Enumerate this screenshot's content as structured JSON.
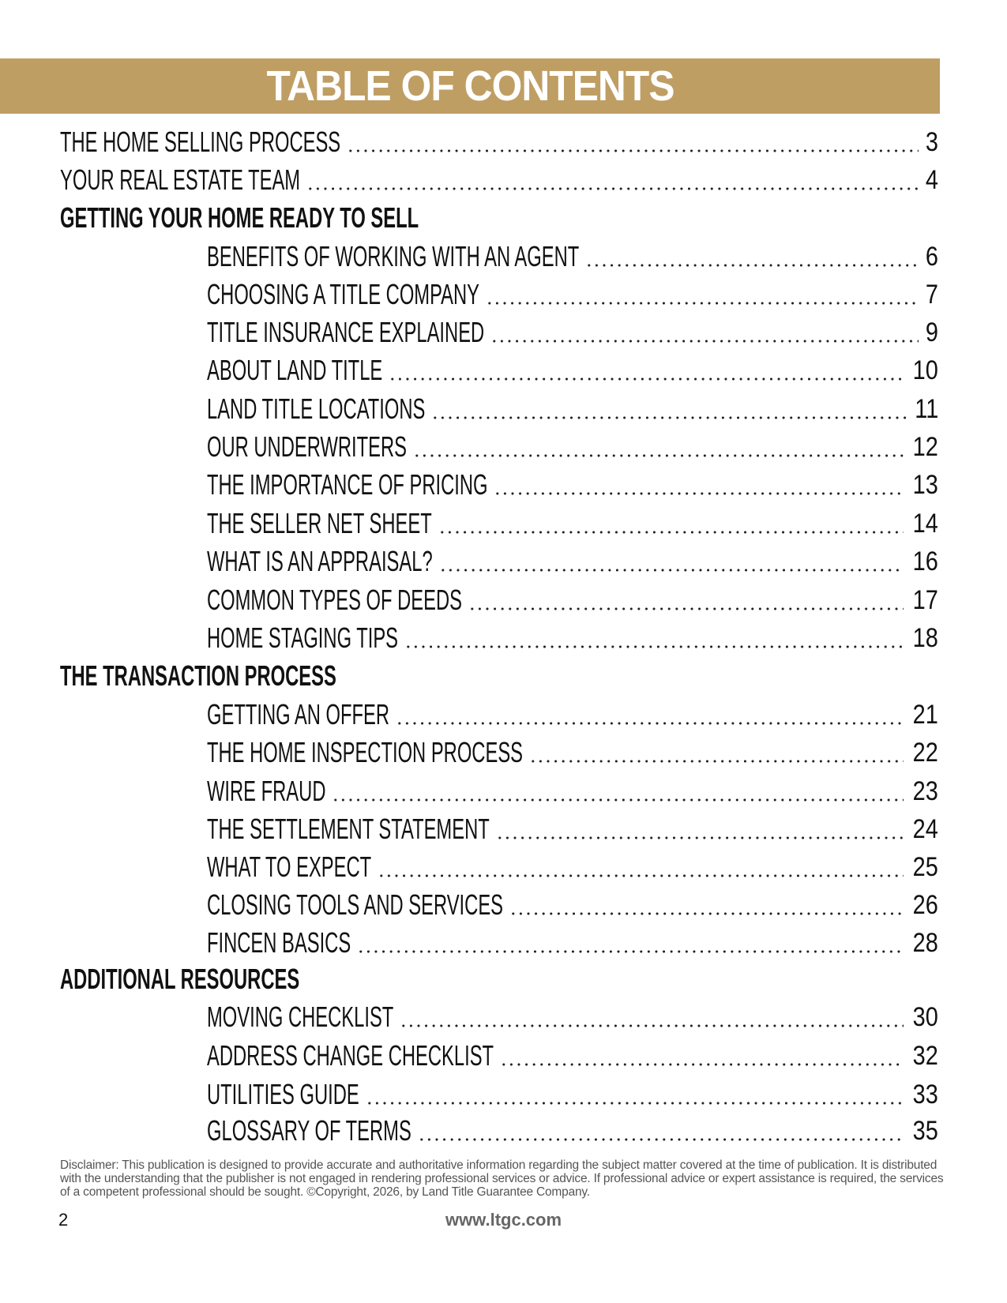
{
  "title": "TABLE OF CONTENTS",
  "colors": {
    "banner": "#bf9e64"
  },
  "entries": [
    {
      "label": "THE HOME SELLING PROCESS",
      "page": "3",
      "level": 0
    },
    {
      "label": "YOUR REAL ESTATE TEAM",
      "page": "4",
      "level": 0
    },
    {
      "label": "GETTING YOUR HOME READY TO SELL",
      "page": "",
      "level": "section"
    },
    {
      "label": "BENEFITS OF WORKING WITH AN AGENT",
      "page": "6",
      "level": 1
    },
    {
      "label": "CHOOSING A TITLE COMPANY",
      "page": "7",
      "level": 1
    },
    {
      "label": "TITLE INSURANCE EXPLAINED",
      "page": "9",
      "level": 1
    },
    {
      "label": "ABOUT LAND TITLE",
      "page": "10",
      "level": 1
    },
    {
      "label": "LAND TITLE LOCATIONS",
      "page": "11",
      "level": 1
    },
    {
      "label": "OUR UNDERWRITERS",
      "page": "12",
      "level": 1
    },
    {
      "label": "THE IMPORTANCE OF PRICING",
      "page": "13",
      "level": 1
    },
    {
      "label": "THE SELLER NET SHEET",
      "page": "14",
      "level": 1
    },
    {
      "label": "WHAT IS AN APPRAISAL?",
      "page": "16",
      "level": 1
    },
    {
      "label": "COMMON TYPES OF DEEDS",
      "page": "17",
      "level": 1
    },
    {
      "label": "HOME STAGING TIPS",
      "page": "18",
      "level": 1
    },
    {
      "label": "THE TRANSACTION PROCESS",
      "page": "",
      "level": "section"
    },
    {
      "label": "GETTING AN OFFER",
      "page": "21",
      "level": 1
    },
    {
      "label": "THE HOME INSPECTION PROCESS",
      "page": "22",
      "level": 1
    },
    {
      "label": "WIRE FRAUD",
      "page": "23",
      "level": 1
    },
    {
      "label": "THE SETTLEMENT STATEMENT",
      "page": "24",
      "level": 1
    },
    {
      "label": "WHAT TO EXPECT",
      "page": "25",
      "level": 1
    },
    {
      "label": "CLOSING TOOLS AND SERVICES",
      "page": "26",
      "level": 1
    },
    {
      "label": "FINCEN BASICS",
      "page": "28",
      "level": 1
    },
    {
      "label": "ADDITIONAL RESOURCES",
      "page": "",
      "level": "section"
    },
    {
      "label": "MOVING CHECKLIST",
      "page": "30",
      "level": 1
    },
    {
      "label": "ADDRESS CHANGE CHECKLIST",
      "page": "32",
      "level": 1
    },
    {
      "label": "UTILITIES GUIDE",
      "page": "33",
      "level": 1
    },
    {
      "label": "GLOSSARY OF TERMS",
      "page": "35",
      "level": 1
    }
  ],
  "disclaimer": "Disclaimer: This publication is designed to provide accurate and authoritative information regarding the subject matter covered at the time of publication. It is distributed with the understanding that the publisher is not engaged in rendering professional services or advice. If professional advice or expert assistance is required, the services of a competent professional should be sought. ©Copyright, 2026, by Land Title Guarantee Company.",
  "footer": {
    "page_number": "2",
    "url": "www.ltgc.com"
  }
}
